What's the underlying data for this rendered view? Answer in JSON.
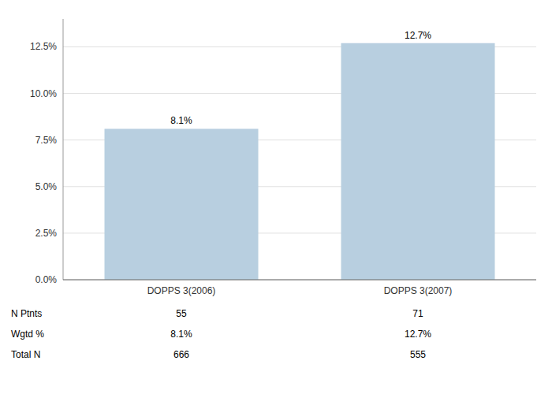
{
  "chart_data": {
    "type": "bar",
    "categories": [
      "DOPPS 3(2006)",
      "DOPPS 3(2007)"
    ],
    "values": [
      8.1,
      12.7
    ],
    "value_labels": [
      "8.1%",
      "12.7%"
    ],
    "data_labels": true,
    "color": "#b8cfe0",
    "ylim": [
      0,
      14.0
    ],
    "yticks": [
      {
        "value": 0.0,
        "label": "0.0%"
      },
      {
        "value": 2.5,
        "label": "2.5%"
      },
      {
        "value": 5.0,
        "label": "5.0%"
      },
      {
        "value": 7.5,
        "label": "7.5%"
      },
      {
        "value": 10.0,
        "label": "10.0%"
      },
      {
        "value": 12.5,
        "label": "12.5%"
      }
    ],
    "grid": true,
    "table": {
      "row_labels": [
        "N Ptnts",
        "Wgtd %",
        "Total N"
      ],
      "rows": [
        [
          "55",
          "71"
        ],
        [
          "8.1%",
          "12.7%"
        ],
        [
          "666",
          "555"
        ]
      ]
    }
  }
}
